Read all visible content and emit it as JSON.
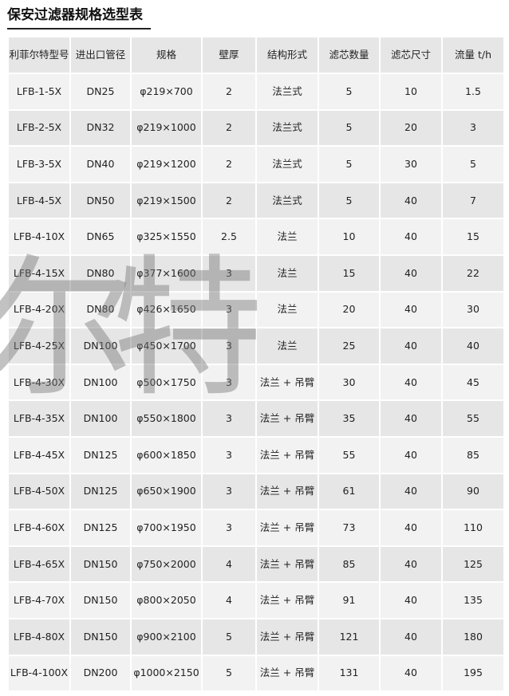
{
  "title": "保安过滤器规格选型表",
  "watermark": [
    "尔",
    "特"
  ],
  "table": {
    "headers": [
      "利菲尔特型号",
      "进出口管径",
      "规格",
      "壁厚",
      "结构形式",
      "滤芯数量",
      "滤芯尺寸",
      "流量 t/h"
    ],
    "rows": [
      [
        "LFB-1-5X",
        "DN25",
        "φ219×700",
        "2",
        "法兰式",
        "5",
        "10",
        "1.5"
      ],
      [
        "LFB-2-5X",
        "DN32",
        "φ219×1000",
        "2",
        "法兰式",
        "5",
        "20",
        "3"
      ],
      [
        "LFB-3-5X",
        "DN40",
        "φ219×1200",
        "2",
        "法兰式",
        "5",
        "30",
        "5"
      ],
      [
        "LFB-4-5X",
        "DN50",
        "φ219×1500",
        "2",
        "法兰式",
        "5",
        "40",
        "7"
      ],
      [
        "LFB-4-10X",
        "DN65",
        "φ325×1550",
        "2.5",
        "法兰",
        "10",
        "40",
        "15"
      ],
      [
        "LFB-4-15X",
        "DN80",
        "φ377×1600",
        "3",
        "法兰",
        "15",
        "40",
        "22"
      ],
      [
        "LFB-4-20X",
        "DN80",
        "φ426×1650",
        "3",
        "法兰",
        "20",
        "40",
        "30"
      ],
      [
        "LFB-4-25X",
        "DN100",
        "φ450×1700",
        "3",
        "法兰",
        "25",
        "40",
        "40"
      ],
      [
        "LFB-4-30X",
        "DN100",
        "φ500×1750",
        "3",
        "法兰 + 吊臂",
        "30",
        "40",
        "45"
      ],
      [
        "LFB-4-35X",
        "DN100",
        "φ550×1800",
        "3",
        "法兰 + 吊臂",
        "35",
        "40",
        "55"
      ],
      [
        "LFB-4-45X",
        "DN125",
        "φ600×1850",
        "3",
        "法兰 + 吊臂",
        "55",
        "40",
        "85"
      ],
      [
        "LFB-4-50X",
        "DN125",
        "φ650×1900",
        "3",
        "法兰 + 吊臂",
        "61",
        "40",
        "90"
      ],
      [
        "LFB-4-60X",
        "DN125",
        "φ700×1950",
        "3",
        "法兰 + 吊臂",
        "73",
        "40",
        "110"
      ],
      [
        "LFB-4-65X",
        "DN150",
        "φ750×2000",
        "4",
        "法兰 + 吊臂",
        "85",
        "40",
        "125"
      ],
      [
        "LFB-4-70X",
        "DN150",
        "φ800×2050",
        "4",
        "法兰 + 吊臂",
        "91",
        "40",
        "135"
      ],
      [
        "LFB-4-80X",
        "DN150",
        "φ900×2100",
        "5",
        "法兰 + 吊臂",
        "121",
        "40",
        "180"
      ],
      [
        "LFB-4-100X",
        "DN200",
        "φ1000×2150",
        "5",
        "法兰 + 吊臂",
        "131",
        "40",
        "195"
      ]
    ]
  }
}
